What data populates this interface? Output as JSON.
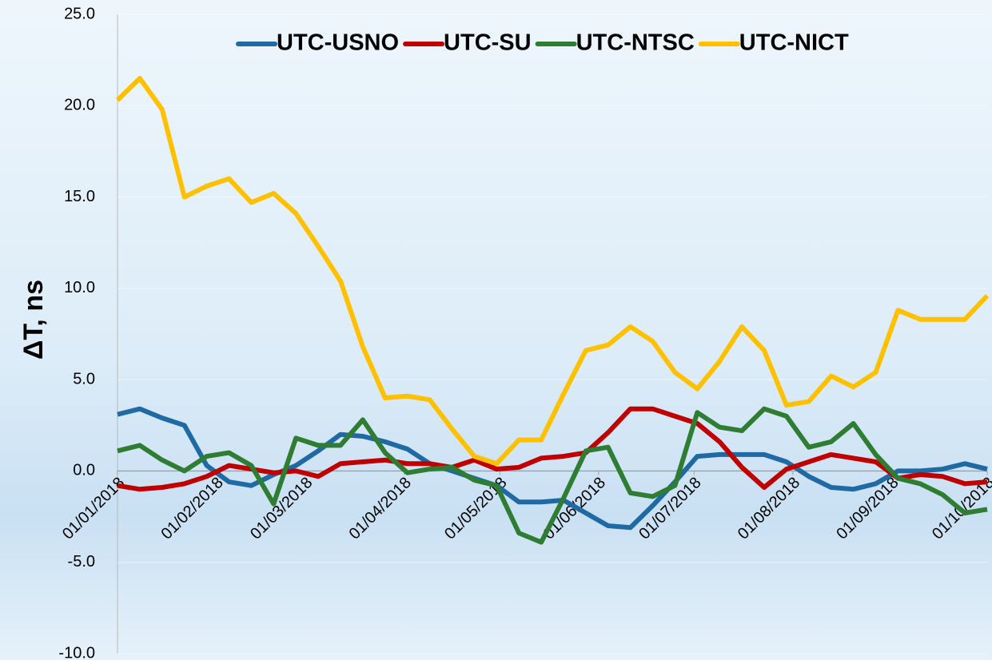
{
  "chart_data": {
    "type": "line",
    "y_label": "ΔT, ns",
    "x": [
      "01/01/2018",
      "08/01/2018",
      "15/01/2018",
      "22/01/2018",
      "29/01/2018",
      "05/02/2018",
      "12/02/2018",
      "19/02/2018",
      "26/02/2018",
      "05/03/2018",
      "12/03/2018",
      "19/03/2018",
      "26/03/2018",
      "02/04/2018",
      "09/04/2018",
      "16/04/2018",
      "23/04/2018",
      "30/04/2018",
      "07/05/2018",
      "14/05/2018",
      "21/05/2018",
      "28/05/2018",
      "04/06/2018",
      "11/06/2018",
      "18/06/2018",
      "25/06/2018",
      "02/07/2018",
      "09/07/2018",
      "16/07/2018",
      "23/07/2018",
      "30/07/2018",
      "06/08/2018",
      "13/08/2018",
      "20/08/2018",
      "27/08/2018",
      "03/09/2018",
      "10/09/2018",
      "17/09/2018",
      "24/09/2018",
      "01/10/2018"
    ],
    "xlim": [
      "01/01/2018",
      "01/10/2018"
    ],
    "xticks": [
      "01/01/2018",
      "01/02/2018",
      "01/03/2018",
      "01/04/2018",
      "01/05/2018",
      "01/06/2018",
      "01/07/2018",
      "01/08/2018",
      "01/09/2018",
      "01/10/2018"
    ],
    "ylim": [
      -10,
      25
    ],
    "yticks": [
      {
        "value": -10,
        "label": "-10.0"
      },
      {
        "value": -5,
        "label": "-5.0"
      },
      {
        "value": 0,
        "label": "0.0"
      },
      {
        "value": 5,
        "label": "5.0"
      },
      {
        "value": 10,
        "label": "10.0"
      },
      {
        "value": 15,
        "label": "15.0"
      },
      {
        "value": 20,
        "label": "20.0"
      },
      {
        "value": 25,
        "label": "25.0"
      }
    ],
    "legend": "top",
    "series": [
      {
        "name": "UTC-USNO",
        "color": "#1f6aa5",
        "values": [
          3.1,
          3.4,
          2.9,
          2.5,
          0.3,
          -0.6,
          -0.8,
          -0.2,
          0.3,
          1.1,
          2.0,
          1.9,
          1.6,
          1.2,
          0.4,
          0.0,
          -0.4,
          -0.8,
          -1.7,
          -1.7,
          -1.6,
          -2.3,
          -3.0,
          -3.1,
          -1.9,
          -0.6,
          0.8,
          0.9,
          0.9,
          0.9,
          0.5,
          -0.3,
          -0.9,
          -1.0,
          -0.7,
          0.0,
          0.0,
          0.1,
          0.4,
          0.1
        ]
      },
      {
        "name": "UTC-SU",
        "color": "#c00000",
        "values": [
          -0.8,
          -1.0,
          -0.9,
          -0.7,
          -0.3,
          0.3,
          0.1,
          -0.1,
          0.0,
          -0.3,
          0.4,
          0.5,
          0.6,
          0.4,
          0.4,
          0.2,
          0.6,
          0.1,
          0.2,
          0.7,
          0.8,
          1.0,
          2.1,
          3.4,
          3.4,
          3.0,
          2.6,
          1.6,
          0.2,
          -0.9,
          0.1,
          0.5,
          0.9,
          0.7,
          0.5,
          -0.4,
          -0.2,
          -0.3,
          -0.7,
          -0.6
        ]
      },
      {
        "name": "UTC-NTSC",
        "color": "#2e7d32",
        "values": [
          1.1,
          1.4,
          0.6,
          0.0,
          0.8,
          1.0,
          0.3,
          -1.8,
          1.8,
          1.4,
          1.4,
          2.8,
          1.0,
          -0.1,
          0.1,
          0.2,
          -0.5,
          -0.8,
          -3.4,
          -3.9,
          -1.5,
          1.1,
          1.3,
          -1.2,
          -1.4,
          -0.8,
          3.2,
          2.4,
          2.2,
          3.4,
          3.0,
          1.3,
          1.6,
          2.6,
          0.9,
          -0.4,
          -0.7,
          -1.3,
          -2.3,
          -2.1
        ]
      },
      {
        "name": "UTC-NICT",
        "color": "#ffc000",
        "values": [
          20.3,
          21.5,
          19.8,
          15.0,
          15.6,
          16.0,
          14.7,
          15.2,
          14.1,
          12.3,
          10.4,
          6.8,
          4.0,
          4.1,
          3.9,
          2.3,
          0.8,
          0.4,
          1.7,
          1.7,
          4.2,
          6.6,
          6.9,
          7.9,
          7.1,
          5.4,
          4.5,
          6.0,
          7.9,
          6.6,
          3.6,
          3.8,
          5.2,
          4.6,
          5.4,
          8.8,
          8.3,
          8.3,
          8.3,
          9.6
        ]
      }
    ]
  }
}
